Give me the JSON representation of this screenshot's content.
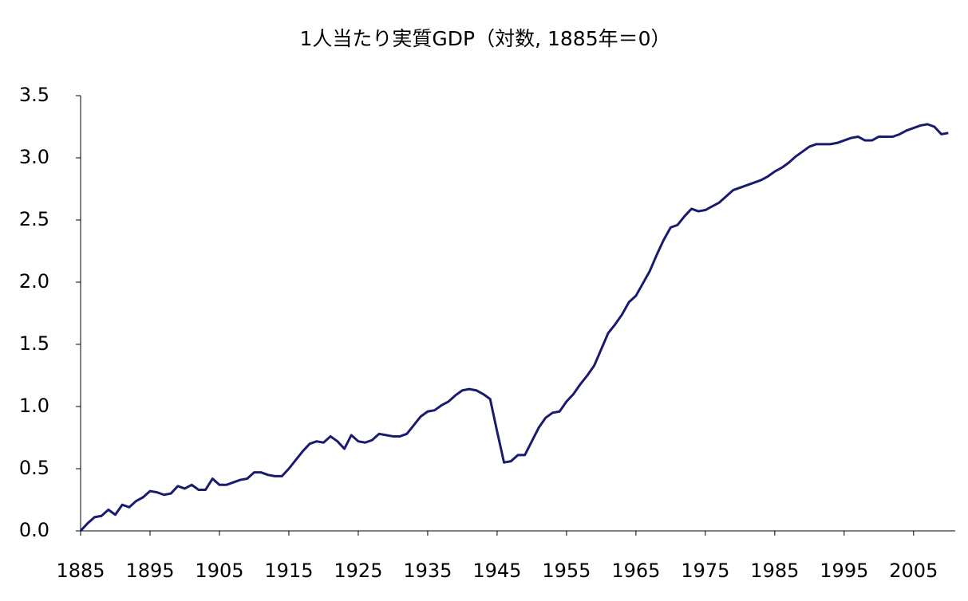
{
  "chart_data": {
    "type": "line",
    "title": "1人当たり実質GDP（対数, 1885年＝0）",
    "color": "#1a1a6e",
    "grid": false,
    "xlim": [
      1885,
      2011
    ],
    "xticks": [
      1885,
      1895,
      1905,
      1915,
      1925,
      1935,
      1945,
      1955,
      1965,
      1975,
      1985,
      1995,
      2005
    ],
    "ylim": [
      0,
      3.5
    ],
    "yticks": [
      {
        "value": 0,
        "label": "0.0"
      },
      0.5,
      {
        "value": 1,
        "label": "1.0"
      },
      1.5,
      {
        "value": 2,
        "label": "2.0"
      },
      2.5,
      {
        "value": 3,
        "label": "3.0"
      },
      3.5
    ],
    "x": [
      1885,
      1886,
      1887,
      1888,
      1889,
      1890,
      1891,
      1892,
      1893,
      1894,
      1895,
      1896,
      1897,
      1898,
      1899,
      1900,
      1901,
      1902,
      1903,
      1904,
      1905,
      1906,
      1907,
      1908,
      1909,
      1910,
      1911,
      1912,
      1913,
      1914,
      1915,
      1916,
      1917,
      1918,
      1919,
      1920,
      1921,
      1922,
      1923,
      1924,
      1925,
      1926,
      1927,
      1928,
      1929,
      1930,
      1931,
      1932,
      1933,
      1934,
      1935,
      1936,
      1937,
      1938,
      1939,
      1940,
      1941,
      1942,
      1943,
      1944,
      1945,
      1946,
      1947,
      1948,
      1949,
      1950,
      1951,
      1952,
      1953,
      1954,
      1955,
      1956,
      1957,
      1958,
      1959,
      1960,
      1961,
      1962,
      1963,
      1964,
      1965,
      1966,
      1967,
      1968,
      1969,
      1970,
      1971,
      1972,
      1973,
      1974,
      1975,
      1976,
      1977,
      1978,
      1979,
      1980,
      1981,
      1982,
      1983,
      1984,
      1985,
      1986,
      1987,
      1988,
      1989,
      1990,
      1991,
      1992,
      1993,
      1994,
      1995,
      1996,
      1997,
      1998,
      1999,
      2000,
      2001,
      2002,
      2003,
      2004,
      2005,
      2006,
      2007,
      2008,
      2009,
      2010
    ],
    "values": [
      0.0,
      0.06,
      0.11,
      0.12,
      0.17,
      0.13,
      0.21,
      0.19,
      0.24,
      0.27,
      0.32,
      0.31,
      0.29,
      0.3,
      0.36,
      0.34,
      0.37,
      0.33,
      0.33,
      0.42,
      0.37,
      0.37,
      0.39,
      0.41,
      0.42,
      0.47,
      0.47,
      0.45,
      0.44,
      0.44,
      0.5,
      0.57,
      0.64,
      0.7,
      0.72,
      0.71,
      0.76,
      0.72,
      0.66,
      0.77,
      0.72,
      0.71,
      0.73,
      0.78,
      0.77,
      0.76,
      0.76,
      0.78,
      0.85,
      0.92,
      0.96,
      0.97,
      1.01,
      1.04,
      1.09,
      1.13,
      1.14,
      1.13,
      1.1,
      1.06,
      0.8,
      0.55,
      0.56,
      0.61,
      0.61,
      0.72,
      0.83,
      0.91,
      0.95,
      0.96,
      1.04,
      1.1,
      1.18,
      1.25,
      1.33,
      1.46,
      1.59,
      1.66,
      1.74,
      1.84,
      1.89,
      1.99,
      2.09,
      2.22,
      2.34,
      2.44,
      2.46,
      2.53,
      2.59,
      2.57,
      2.58,
      2.61,
      2.64,
      2.69,
      2.74,
      2.76,
      2.78,
      2.8,
      2.82,
      2.85,
      2.89,
      2.92,
      2.96,
      3.01,
      3.05,
      3.09,
      3.11,
      3.11,
      3.11,
      3.12,
      3.14,
      3.16,
      3.17,
      3.14,
      3.14,
      3.17,
      3.17,
      3.17,
      3.19,
      3.22,
      3.24,
      3.26,
      3.27,
      3.25,
      3.19,
      3.2
    ]
  }
}
